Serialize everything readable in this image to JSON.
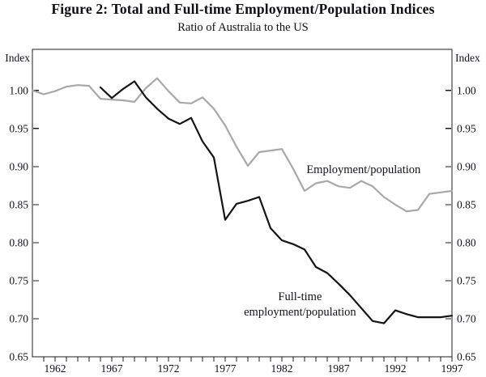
{
  "figure": {
    "title": "Figure 2: Total and Full-time Employment/Population Indices",
    "subtitle": "Ratio of Australia to the US"
  },
  "chart_data": {
    "type": "line",
    "title": "Figure 2: Total and Full-time Employment/Population Indices",
    "subtitle": "Ratio of Australia to the US",
    "ylabel": "Index",
    "y_axis_title_left": "Index",
    "y_axis_title_right": "Index",
    "grid": false,
    "legend_position": "inline-annotations",
    "xlim": [
      1960,
      1997
    ],
    "ylim": [
      0.65,
      1.054
    ],
    "y_ticks": [
      0.65,
      0.7,
      0.75,
      0.8,
      0.85,
      0.9,
      0.95,
      1.0
    ],
    "x_labeled_ticks": [
      1962,
      1967,
      1972,
      1977,
      1982,
      1987,
      1992,
      1997
    ],
    "x_minor_tick_step": 1,
    "series": [
      {
        "name": "Employment/population",
        "color": "#a8a8a8",
        "x_start": 1960,
        "x_step": 1,
        "values": [
          1.0,
          0.995,
          0.999,
          1.005,
          1.007,
          1.006,
          0.989,
          0.988,
          0.987,
          0.985,
          1.003,
          1.016,
          0.999,
          0.984,
          0.983,
          0.991,
          0.976,
          0.954,
          0.926,
          0.901,
          0.919,
          0.921,
          0.923,
          0.897,
          0.868,
          0.878,
          0.881,
          0.874,
          0.872,
          0.881,
          0.874,
          0.86,
          0.85,
          0.841,
          0.843,
          0.864,
          0.866,
          0.868
        ]
      },
      {
        "name": "Full-time employment/population",
        "color": "#141414",
        "x_start": 1966,
        "x_step": 1,
        "values": [
          1.004,
          0.99,
          1.002,
          1.012,
          0.991,
          0.976,
          0.963,
          0.956,
          0.964,
          0.933,
          0.912,
          0.83,
          0.851,
          0.855,
          0.86,
          0.819,
          0.803,
          0.798,
          0.791,
          0.768,
          0.76,
          0.746,
          0.731,
          0.714,
          0.697,
          0.694,
          0.711,
          0.706,
          0.702,
          0.702,
          0.702,
          0.704
        ]
      }
    ],
    "annotations": [
      {
        "lines": [
          "Employment/population"
        ],
        "x": 1989.2,
        "y": 0.8915
      },
      {
        "lines": [
          "Full-time",
          "employment/population"
        ],
        "x": 1983.6,
        "y": 0.7245
      }
    ]
  },
  "colors": {
    "background": "#ffffff",
    "axis": "#1c1c1c",
    "text": "#12121e"
  }
}
